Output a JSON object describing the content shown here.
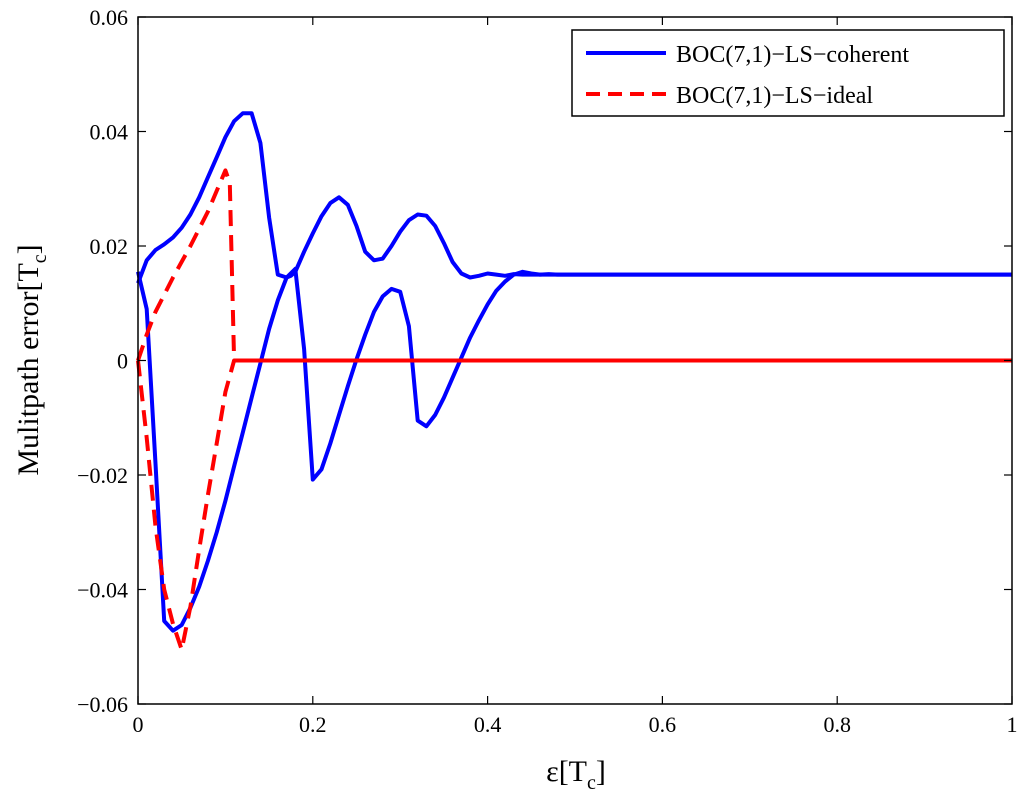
{
  "chart_data": {
    "type": "line",
    "title": "",
    "xlabel": "ε[T_c]",
    "ylabel": "Mulitpath error[T_c]",
    "xlim": [
      0,
      1
    ],
    "ylim": [
      -0.06,
      0.06
    ],
    "x_ticks": [
      0,
      0.2,
      0.4,
      0.6,
      0.8,
      1
    ],
    "x_tick_labels": [
      "0",
      "0.2",
      "0.4",
      "0.6",
      "0.8",
      "1"
    ],
    "y_ticks": [
      -0.06,
      -0.04,
      -0.02,
      0,
      0.02,
      0.04,
      0.06
    ],
    "y_tick_labels": [
      "−0.06",
      "−0.04",
      "−0.02",
      "0",
      "0.02",
      "0.04",
      "0.06"
    ],
    "grid": false,
    "legend_position": "top-right",
    "colors": {
      "coherent": "#0000ff",
      "ideal": "#ff0000",
      "axes": "#000000",
      "background": "#ffffff"
    },
    "series": [
      {
        "name": "BOC(7,1)−LS−coherent",
        "style": "solid",
        "color": "#0000ff",
        "branches": [
          {
            "label": "upper",
            "x": [
              0,
              0.01,
              0.02,
              0.03,
              0.04,
              0.05,
              0.06,
              0.07,
              0.08,
              0.09,
              0.1,
              0.11,
              0.12,
              0.13,
              0.14,
              0.15,
              0.16,
              0.17,
              0.175,
              0.18,
              0.19,
              0.2,
              0.21,
              0.22,
              0.23,
              0.24,
              0.25,
              0.26,
              0.27,
              0.28,
              0.29,
              0.3,
              0.31,
              0.32,
              0.33,
              0.34,
              0.35,
              0.36,
              0.37,
              0.38,
              0.39,
              0.4,
              0.41,
              0.42,
              0.43,
              0.44,
              0.45,
              0.46,
              0.47,
              0.48,
              0.5,
              0.55,
              0.6,
              0.7,
              0.8,
              0.9,
              1.0
            ],
            "y": [
              0.0135,
              0.0175,
              0.0193,
              0.0203,
              0.0215,
              0.0232,
              0.0255,
              0.0285,
              0.032,
              0.0355,
              0.039,
              0.0418,
              0.0432,
              0.0432,
              0.038,
              0.025,
              0.015,
              0.0145,
              0.0148,
              0.0155,
              0.019,
              0.0222,
              0.0252,
              0.0275,
              0.0285,
              0.0272,
              0.0235,
              0.019,
              0.0175,
              0.0178,
              0.02,
              0.0225,
              0.0245,
              0.0255,
              0.0253,
              0.0235,
              0.0205,
              0.0172,
              0.0152,
              0.0145,
              0.0148,
              0.0152,
              0.015,
              0.0148,
              0.0151,
              0.015,
              0.015,
              0.015,
              0.015,
              0.015,
              0.015,
              0.015,
              0.015,
              0.015,
              0.015,
              0.015,
              0.015
            ]
          },
          {
            "label": "lower",
            "x": [
              0,
              0.01,
              0.02,
              0.03,
              0.04,
              0.05,
              0.06,
              0.07,
              0.08,
              0.09,
              0.1,
              0.11,
              0.12,
              0.13,
              0.14,
              0.15,
              0.16,
              0.17,
              0.18,
              0.19,
              0.2,
              0.21,
              0.22,
              0.23,
              0.24,
              0.25,
              0.26,
              0.27,
              0.28,
              0.29,
              0.3,
              0.31,
              0.32,
              0.33,
              0.34,
              0.35,
              0.36,
              0.37,
              0.38,
              0.39,
              0.4,
              0.41,
              0.42,
              0.43,
              0.44,
              0.45,
              0.46,
              0.47,
              0.48,
              0.5,
              0.55,
              0.6,
              0.7,
              0.8,
              0.9,
              1.0
            ],
            "y": [
              0.0155,
              0.009,
              -0.018,
              -0.0455,
              -0.0472,
              -0.0462,
              -0.0432,
              -0.0395,
              -0.035,
              -0.03,
              -0.0245,
              -0.0185,
              -0.0125,
              -0.0065,
              -0.0005,
              0.0055,
              0.0105,
              0.0145,
              0.016,
              0.002,
              -0.0208,
              -0.019,
              -0.0145,
              -0.0095,
              -0.0045,
              0.0002,
              0.0045,
              0.0085,
              0.0112,
              0.0125,
              0.012,
              0.006,
              -0.0105,
              -0.0115,
              -0.0095,
              -0.0065,
              -0.003,
              0.0005,
              0.004,
              0.007,
              0.0098,
              0.0122,
              0.0138,
              0.015,
              0.0155,
              0.0152,
              0.015,
              0.0151,
              0.015,
              0.015,
              0.015,
              0.015,
              0.015,
              0.015,
              0.015,
              0.015
            ]
          }
        ]
      },
      {
        "name": "BOC(7,1)−LS−ideal",
        "style": "dashed",
        "color": "#ff0000",
        "branches": [
          {
            "label": "upper",
            "x": [
              0,
              0.01,
              0.02,
              0.04,
              0.06,
              0.08,
              0.1,
              0.105,
              0.11,
              1.0
            ],
            "y": [
              0.0,
              0.0045,
              0.0085,
              0.0145,
              0.02,
              0.026,
              0.0332,
              0.031,
              0.0,
              0.0
            ]
          },
          {
            "label": "lower",
            "x": [
              0,
              0.01,
              0.02,
              0.03,
              0.04,
              0.05,
              0.06,
              0.07,
              0.08,
              0.09,
              0.1,
              0.11,
              1.0
            ],
            "y": [
              0.0,
              -0.0135,
              -0.029,
              -0.04,
              -0.046,
              -0.0505,
              -0.043,
              -0.033,
              -0.0235,
              -0.0145,
              -0.0055,
              0.0,
              0.0
            ]
          }
        ]
      }
    ]
  }
}
